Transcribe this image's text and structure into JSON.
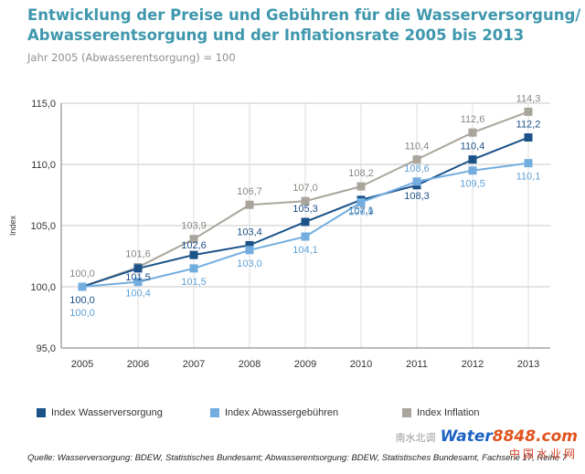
{
  "header": {
    "title_line1": "Entwicklung der Preise und Gebühren für die Wasserversorgung/",
    "title_line2": "Abwasserentsorgung und der Inflationsrate 2005 bis 2013",
    "subtitle": "Jahr 2005 (Abwasserentsorgung) = 100"
  },
  "source": "Quelle: Wasserversorgung: BDEW, Statistisches Bundesamt; Abwasserentsorgung: BDEW, Statistisches Bundesamt, Fachserie 17, Reihe 7",
  "watermark": {
    "line1": "南水北调",
    "brand": "Water",
    "brand2": "8848.com",
    "line2": "中国水业网"
  },
  "chart_data": {
    "type": "line",
    "title": "Entwicklung der Preise und Gebühren für die Wasserversorgung/Abwasserentsorgung und der Inflationsrate 2005 bis 2013",
    "xlabel": "",
    "ylabel": "Index",
    "ylim": [
      95,
      115
    ],
    "yticks": [
      "95,0",
      "100,0",
      "105,0",
      "110,0",
      "115,0"
    ],
    "ytick_values": [
      95,
      100,
      105,
      110,
      115
    ],
    "grid": true,
    "legend_position": "bottom",
    "categories": [
      "2005",
      "2006",
      "2007",
      "2008",
      "2009",
      "2010",
      "2011",
      "2012",
      "2013"
    ],
    "series": [
      {
        "name": "Index Inflation",
        "color": "#aaa59c",
        "values": [
          100.0,
          101.6,
          103.9,
          106.7,
          107.0,
          108.2,
          110.4,
          112.6,
          114.3
        ],
        "labels": [
          "100,0",
          "101,6",
          "103,9",
          "106,7",
          "107,0",
          "108,2",
          "110,4",
          "112,6",
          "114,3"
        ],
        "label_color": "#8b8680"
      },
      {
        "name": "Index Wasserversorgung",
        "color": "#1b5389",
        "values": [
          100.0,
          101.5,
          102.6,
          103.4,
          105.3,
          107.1,
          108.3,
          110.4,
          112.2
        ],
        "labels": [
          "100,0",
          "101,5",
          "102,6",
          "103,4",
          "105,3",
          "107,1",
          "108,3",
          "110,4",
          "112,2"
        ],
        "label_color": "#1b4f85"
      },
      {
        "name": "Index Abwassergebühren",
        "color": "#73ade0",
        "values": [
          100.0,
          100.4,
          101.5,
          103.0,
          104.1,
          106.9,
          108.6,
          109.5,
          110.1
        ],
        "labels": [
          "100,0",
          "100,4",
          "101,5",
          "103,0",
          "104,1",
          "106,9",
          "108,6",
          "109,5",
          "110,1"
        ],
        "label_color": "#5fa1d8"
      }
    ]
  }
}
